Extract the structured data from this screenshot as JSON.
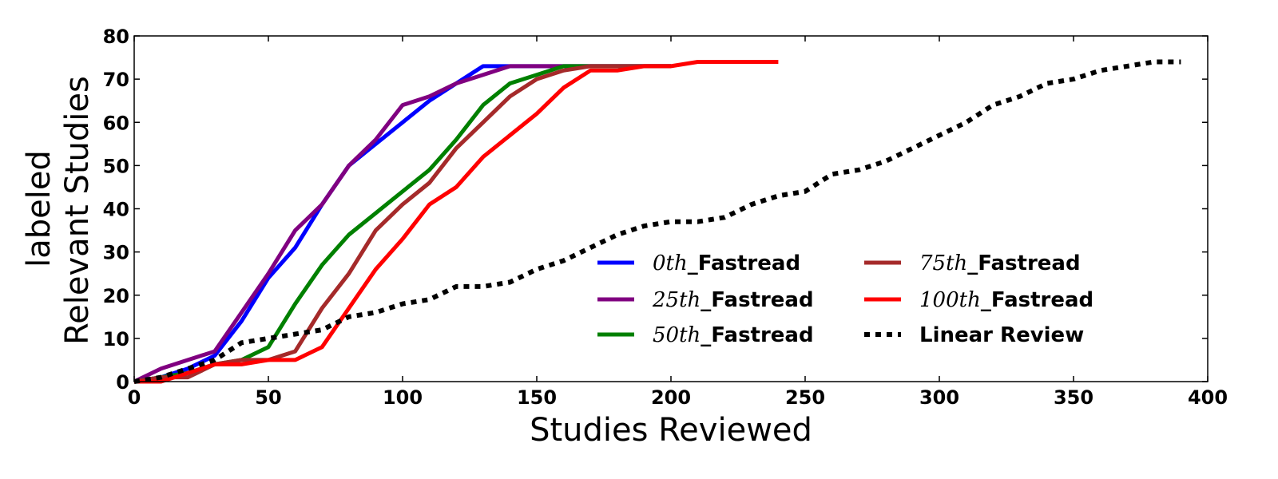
{
  "chart_data": {
    "type": "line",
    "xlabel": "Studies Reviewed",
    "ylabel_lines": [
      "labeled",
      "Relevant Studies"
    ],
    "xlim": [
      0,
      400
    ],
    "ylim": [
      0,
      80
    ],
    "xticks": [
      0,
      50,
      100,
      150,
      200,
      250,
      300,
      350,
      400
    ],
    "yticks": [
      0,
      10,
      20,
      30,
      40,
      50,
      60,
      70,
      80
    ],
    "grid": false,
    "legend": {
      "placement": "lower-right",
      "columns": 2
    },
    "series": [
      {
        "name": "0th_Fastread",
        "name_math": "0th",
        "name_text": "_Fastread",
        "color": "#0000ff",
        "style": "solid",
        "x": [
          0,
          10,
          20,
          30,
          40,
          50,
          60,
          70,
          80,
          90,
          100,
          110,
          120,
          130,
          140,
          150,
          160,
          170,
          180,
          190,
          200
        ],
        "y": [
          0,
          1,
          3,
          6,
          14,
          24,
          31,
          41,
          50,
          55,
          60,
          65,
          69,
          73,
          73,
          73,
          73,
          73,
          73,
          73,
          73
        ]
      },
      {
        "name": "25th_Fastread",
        "name_math": "25th",
        "name_text": "_Fastread",
        "color": "#800080",
        "style": "solid",
        "x": [
          0,
          10,
          20,
          30,
          40,
          50,
          60,
          70,
          80,
          90,
          100,
          110,
          120,
          130,
          140,
          150,
          160,
          170,
          180,
          190,
          200
        ],
        "y": [
          0,
          3,
          5,
          7,
          16,
          25,
          35,
          41,
          50,
          56,
          64,
          66,
          69,
          71,
          73,
          73,
          73,
          73,
          73,
          73,
          73
        ]
      },
      {
        "name": "50th_Fastread",
        "name_math": "50th",
        "name_text": "_Fastread",
        "color": "#008000",
        "style": "solid",
        "x": [
          0,
          10,
          20,
          30,
          40,
          50,
          60,
          70,
          80,
          90,
          100,
          110,
          120,
          130,
          140,
          150,
          160,
          170,
          180,
          190,
          200
        ],
        "y": [
          0,
          1,
          2,
          4,
          5,
          8,
          18,
          27,
          34,
          39,
          44,
          49,
          56,
          64,
          69,
          71,
          73,
          73,
          73,
          73,
          73
        ]
      },
      {
        "name": "75th_Fastread",
        "name_math": "75th",
        "name_text": "_Fastread",
        "color": "#a52a2a",
        "style": "solid",
        "x": [
          0,
          10,
          20,
          30,
          40,
          50,
          60,
          70,
          80,
          90,
          100,
          110,
          120,
          130,
          140,
          150,
          160,
          170,
          180,
          190,
          200
        ],
        "y": [
          0,
          1,
          1,
          4,
          5,
          5,
          7,
          17,
          25,
          35,
          41,
          46,
          54,
          60,
          66,
          70,
          72,
          73,
          73,
          73,
          73
        ]
      },
      {
        "name": "100th_Fastread",
        "name_math": "100th",
        "name_text": "_Fastread",
        "color": "#ff0000",
        "style": "solid",
        "x": [
          0,
          10,
          20,
          30,
          40,
          50,
          60,
          70,
          80,
          90,
          100,
          110,
          120,
          130,
          140,
          150,
          160,
          170,
          180,
          190,
          200,
          210,
          220,
          230,
          240
        ],
        "y": [
          0,
          0,
          2,
          4,
          4,
          5,
          5,
          8,
          17,
          26,
          33,
          41,
          45,
          52,
          57,
          62,
          68,
          72,
          72,
          73,
          73,
          74,
          74,
          74,
          74
        ]
      },
      {
        "name": "Linear Review",
        "name_math": "",
        "name_text": "Linear Review",
        "color": "#000000",
        "style": "dotted",
        "x": [
          0,
          10,
          20,
          30,
          40,
          50,
          60,
          70,
          80,
          90,
          100,
          110,
          120,
          130,
          140,
          150,
          160,
          170,
          180,
          190,
          200,
          210,
          220,
          230,
          240,
          250,
          260,
          270,
          280,
          290,
          300,
          310,
          320,
          330,
          340,
          350,
          360,
          370,
          380,
          390
        ],
        "y": [
          0,
          1,
          3,
          5,
          9,
          10,
          11,
          12,
          15,
          16,
          18,
          19,
          22,
          22,
          23,
          26,
          28,
          31,
          34,
          36,
          37,
          37,
          38,
          41,
          43,
          44,
          48,
          49,
          51,
          54,
          57,
          60,
          64,
          66,
          69,
          70,
          72,
          73,
          74,
          74
        ]
      }
    ]
  }
}
